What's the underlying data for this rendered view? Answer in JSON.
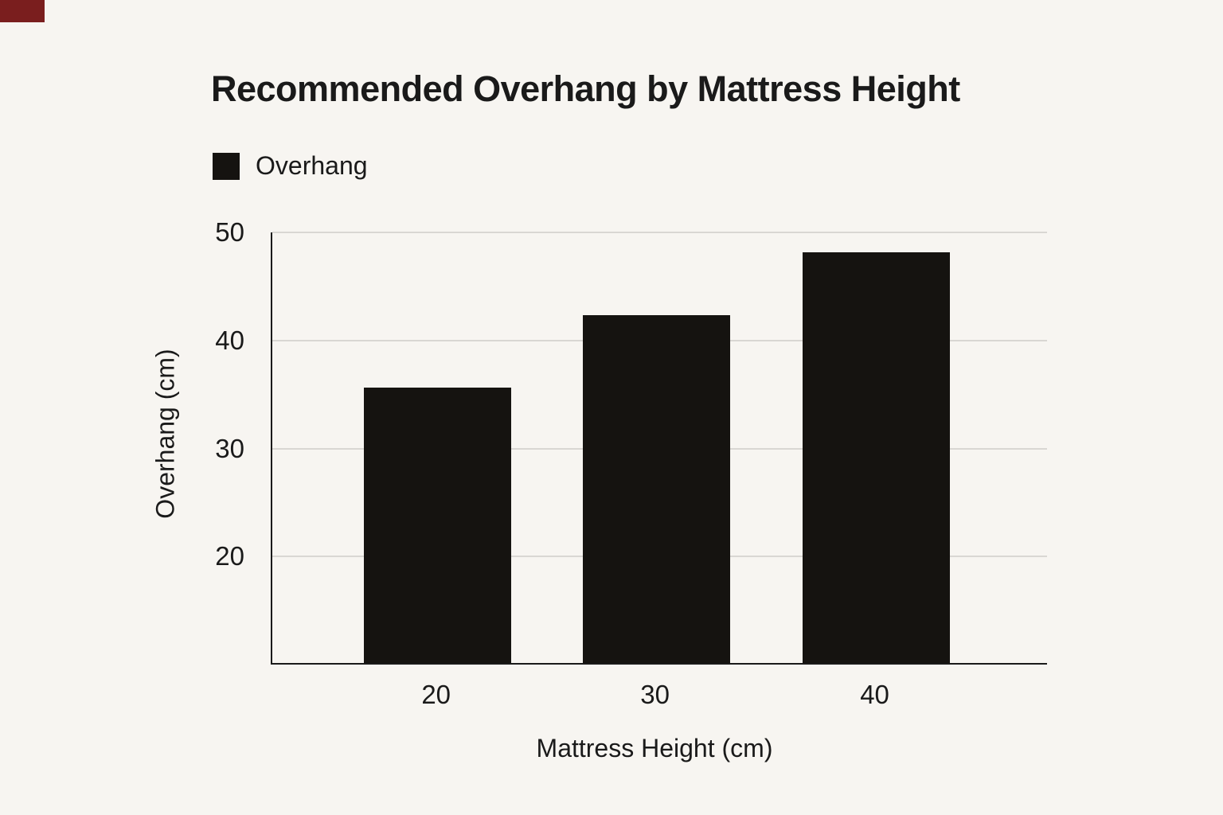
{
  "chart_data": {
    "type": "bar",
    "title": "Recommended Overhang by Mattress Height",
    "legend": [
      "Overhang"
    ],
    "categories": [
      "20",
      "30",
      "40"
    ],
    "series": [
      {
        "name": "Overhang",
        "values": [
          35.5,
          42.2,
          48
        ]
      }
    ],
    "xlabel": "Mattress Height (cm)",
    "ylabel": "Overhang (cm)",
    "ylim": [
      10,
      50
    ],
    "y_ticks": [
      20,
      30,
      40,
      50
    ],
    "grid": "horizontal",
    "legend_position": "top-left"
  },
  "colors": {
    "background": "#f7f5f1",
    "bar": "#151310",
    "gridline": "#d9d7d3",
    "axis": "#1a1a1a",
    "text": "#1a1a1a",
    "corner_accent": "#7a1e1e"
  }
}
